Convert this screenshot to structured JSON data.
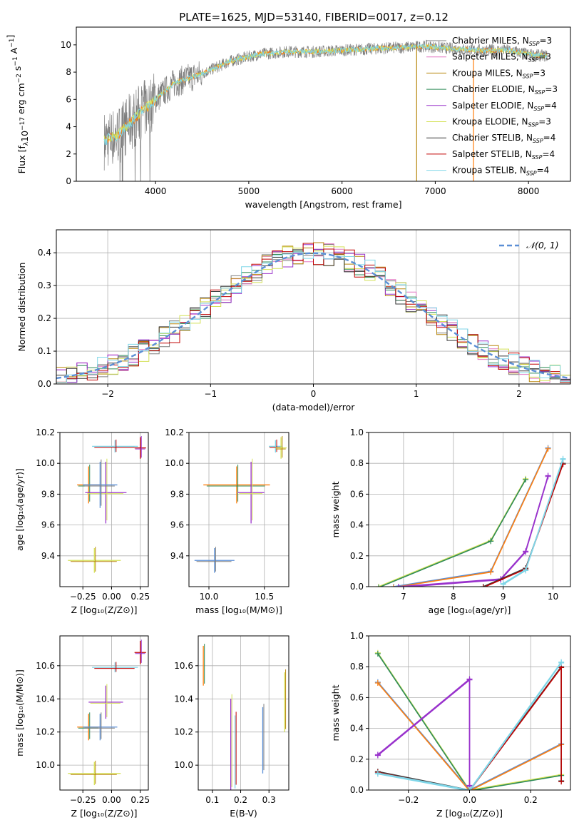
{
  "title": "PLATE=1625, MJD=53140, FIBERID=0017, z=0.12",
  "colors": [
    "#7f7f7f",
    "#e377c2",
    "#bcbd22",
    "#2ca02c",
    "#9467bd",
    "#dbdb8d",
    "#4d4d4d",
    "#d62728",
    "#17becf",
    "#ff7f0e",
    "#1f77b4",
    "#9edae5"
  ],
  "models": [
    {
      "name": "Chabrier MILES",
      "nssp": 3,
      "color": "#7f7f7f"
    },
    {
      "name": "Salpeter MILES",
      "nssp": 3,
      "color": "#e377c2"
    },
    {
      "name": "Kroupa MILES",
      "nssp": 3,
      "color": "#b8860b"
    },
    {
      "name": "Chabrier ELODIE",
      "nssp": 3,
      "color": "#2e8b57"
    },
    {
      "name": "Salpeter ELODIE",
      "nssp": 4,
      "color": "#9932cc"
    },
    {
      "name": "Kroupa ELODIE",
      "nssp": 3,
      "color": "#d4e157"
    },
    {
      "name": "Chabrier STELIB",
      "nssp": 4,
      "color": "#3a3a3a"
    },
    {
      "name": "Salpeter STELIB",
      "nssp": 4,
      "color": "#c00000"
    },
    {
      "name": "Kroupa STELIB",
      "nssp": 4,
      "color": "#7fd6e8"
    }
  ],
  "chart_data": [
    {
      "type": "line",
      "xlabel": "wavelength [Angstrom, rest frame]",
      "ylabel_prefix": "Flux [f",
      "ylabel_mid": "10",
      "ylabel_exp": "−17",
      "ylabel_units": " erg cm",
      "ylabel_exp2": "−2",
      "ylabel_units2": " s",
      "ylabel_exp3": "−1",
      "ylabel_units3": " A",
      "ylabel_exp4": "−1",
      "ylabel_close": "]",
      "xlim": [
        3150,
        8450
      ],
      "ylim": [
        0,
        11.3
      ],
      "xticks": [
        4000,
        5000,
        6000,
        7000,
        8000
      ],
      "yticks": [
        0,
        2,
        4,
        6,
        8,
        10
      ],
      "continuum": {
        "x": [
          3450,
          3600,
          3800,
          4000,
          4200,
          4500,
          4800,
          5100,
          5400,
          5700,
          6000,
          6300,
          6600,
          6900,
          7200,
          7500,
          7800,
          8000,
          8150
        ],
        "y": [
          3.0,
          3.4,
          4.8,
          6.0,
          7.2,
          7.9,
          8.8,
          9.3,
          9.5,
          9.5,
          9.6,
          9.7,
          9.8,
          9.9,
          9.7,
          9.6,
          9.6,
          9.3,
          9.2
        ]
      },
      "legend_nssp_label": "N"
    },
    {
      "type": "line",
      "xlabel": "(data-model)/error",
      "ylabel": "Normed distribution",
      "xlim": [
        -2.5,
        2.5
      ],
      "ylim": [
        0,
        0.47
      ],
      "xticks": [
        -2,
        -1,
        0,
        1,
        2
      ],
      "yticks": [
        0.0,
        0.1,
        0.2,
        0.3,
        0.4
      ],
      "legend": "𝒩(0, 1)"
    },
    {
      "type": "scatter",
      "xlabel": "Z [log10(Z/Z⊙)]",
      "ylabel": "age  [log10(age/yr)]",
      "xlim": [
        -0.45,
        0.32
      ],
      "ylim": [
        9.2,
        10.2
      ],
      "xticks": [
        -0.25,
        0.0,
        0.25
      ],
      "yticks": [
        9.4,
        9.6,
        9.8,
        10.0,
        10.2
      ],
      "points": [
        {
          "x": -0.2,
          "y": 9.86,
          "xerr": 0.1,
          "yerr": 0.12
        },
        {
          "x": -0.05,
          "y": 9.81,
          "xerr": 0.18,
          "yerr": 0.2
        },
        {
          "x": 0.03,
          "y": 10.11,
          "xerr": 0.2,
          "yerr": 0.04
        },
        {
          "x": -0.1,
          "y": 9.86,
          "xerr": 0.15,
          "yerr": 0.15
        },
        {
          "x": -0.15,
          "y": 9.37,
          "xerr": 0.23,
          "yerr": 0.08
        },
        {
          "x": 0.25,
          "y": 10.1,
          "xerr": 0.05,
          "yerr": 0.07
        }
      ]
    },
    {
      "type": "scatter",
      "xlabel": "mass [log10(M/M⊙)]",
      "xlim": [
        9.82,
        10.72
      ],
      "ylim": [
        9.2,
        10.2
      ],
      "xticks": [
        10.0,
        10.5
      ],
      "yticks": [
        9.4,
        9.6,
        9.8,
        10.0,
        10.2
      ],
      "points": [
        {
          "x": 10.25,
          "y": 9.86,
          "xerr": 0.3,
          "yerr": 0.12
        },
        {
          "x": 10.38,
          "y": 9.81,
          "xerr": 0.12,
          "yerr": 0.2
        },
        {
          "x": 10.6,
          "y": 10.11,
          "xerr": 0.06,
          "yerr": 0.04
        },
        {
          "x": 10.05,
          "y": 9.37,
          "xerr": 0.18,
          "yerr": 0.08
        },
        {
          "x": 10.65,
          "y": 10.1,
          "xerr": 0.05,
          "yerr": 0.07
        }
      ]
    },
    {
      "type": "line",
      "xlabel": "age  [log10(age/yr)]",
      "ylabel": "mass weight",
      "xlim": [
        6.3,
        10.35
      ],
      "ylim": [
        0,
        1.0
      ],
      "xticks": [
        7,
        8,
        9,
        10
      ],
      "yticks": [
        0.0,
        0.2,
        0.4,
        0.6,
        0.8,
        1.0
      ],
      "series": [
        {
          "x": [
            6.5,
            8.75,
            9.45
          ],
          "y": [
            0.0,
            0.3,
            0.7
          ]
        },
        {
          "x": [
            6.8,
            8.75,
            9.9
          ],
          "y": [
            0.0,
            0.1,
            0.9
          ]
        },
        {
          "x": [
            6.9,
            8.95,
            9.45,
            9.9
          ],
          "y": [
            0.0,
            0.05,
            0.23,
            0.72
          ]
        },
        {
          "x": [
            8.6,
            9.45,
            10.2
          ],
          "y": [
            0.0,
            0.12,
            0.8
          ]
        },
        {
          "x": [
            9.0,
            9.45,
            10.2
          ],
          "y": [
            0.02,
            0.11,
            0.83
          ]
        }
      ]
    },
    {
      "type": "scatter",
      "xlabel": "Z [log10(Z/Z⊙)]",
      "ylabel": "mass [log10(M/M⊙)]",
      "xlim": [
        -0.45,
        0.32
      ],
      "ylim": [
        9.85,
        10.78
      ],
      "xticks": [
        -0.25,
        0.0,
        0.25
      ],
      "yticks": [
        10.0,
        10.2,
        10.4,
        10.6
      ],
      "points": [
        {
          "x": -0.2,
          "y": 10.23,
          "xerr": 0.1,
          "yerr": 0.08
        },
        {
          "x": -0.05,
          "y": 10.38,
          "xerr": 0.15,
          "yerr": 0.1
        },
        {
          "x": 0.03,
          "y": 10.59,
          "xerr": 0.2,
          "yerr": 0.03
        },
        {
          "x": -0.1,
          "y": 10.23,
          "xerr": 0.15,
          "yerr": 0.08
        },
        {
          "x": -0.15,
          "y": 9.95,
          "xerr": 0.23,
          "yerr": 0.07
        },
        {
          "x": 0.25,
          "y": 10.68,
          "xerr": 0.05,
          "yerr": 0.07
        }
      ]
    },
    {
      "type": "scatter",
      "xlabel": "E(B-V)",
      "xlim": [
        0.05,
        0.37
      ],
      "ylim": [
        9.85,
        10.78
      ],
      "xticks": [
        0.1,
        0.2,
        0.3
      ],
      "yticks": [
        10.0,
        10.2,
        10.4,
        10.6
      ],
      "points": [
        {
          "x": 0.068,
          "y": 10.6,
          "yerr": 0.12
        },
        {
          "x": 0.165,
          "y": 10.12,
          "yerr": 0.28
        },
        {
          "x": 0.18,
          "y": 10.08,
          "yerr": 0.22
        },
        {
          "x": 0.278,
          "y": 10.15,
          "yerr": 0.2
        },
        {
          "x": 0.355,
          "y": 10.38,
          "yerr": 0.18
        }
      ]
    },
    {
      "type": "line",
      "xlabel": "Z [log10(Z/Z⊙)]",
      "ylabel": "mass weight",
      "xlim": [
        -0.33,
        0.33
      ],
      "ylim": [
        0,
        1.0
      ],
      "xticks": [
        -0.2,
        0.0,
        0.2
      ],
      "yticks": [
        0.0,
        0.2,
        0.4,
        0.6,
        0.8,
        1.0
      ],
      "series": [
        {
          "x": [
            -0.3,
            0.0,
            0.3
          ],
          "y": [
            0.89,
            0.0,
            0.1
          ]
        },
        {
          "x": [
            -0.3,
            0.0,
            0.3
          ],
          "y": [
            0.7,
            0.0,
            0.3
          ]
        },
        {
          "x": [
            -0.3,
            0.0,
            0.0
          ],
          "y": [
            0.23,
            0.72,
            0.03
          ]
        },
        {
          "x": [
            -0.3,
            0.0,
            0.3,
            0.3
          ],
          "y": [
            0.12,
            0.0,
            0.8,
            0.06
          ]
        },
        {
          "x": [
            -0.3,
            0.0,
            0.3
          ],
          "y": [
            0.11,
            0.0,
            0.83
          ]
        }
      ]
    }
  ]
}
